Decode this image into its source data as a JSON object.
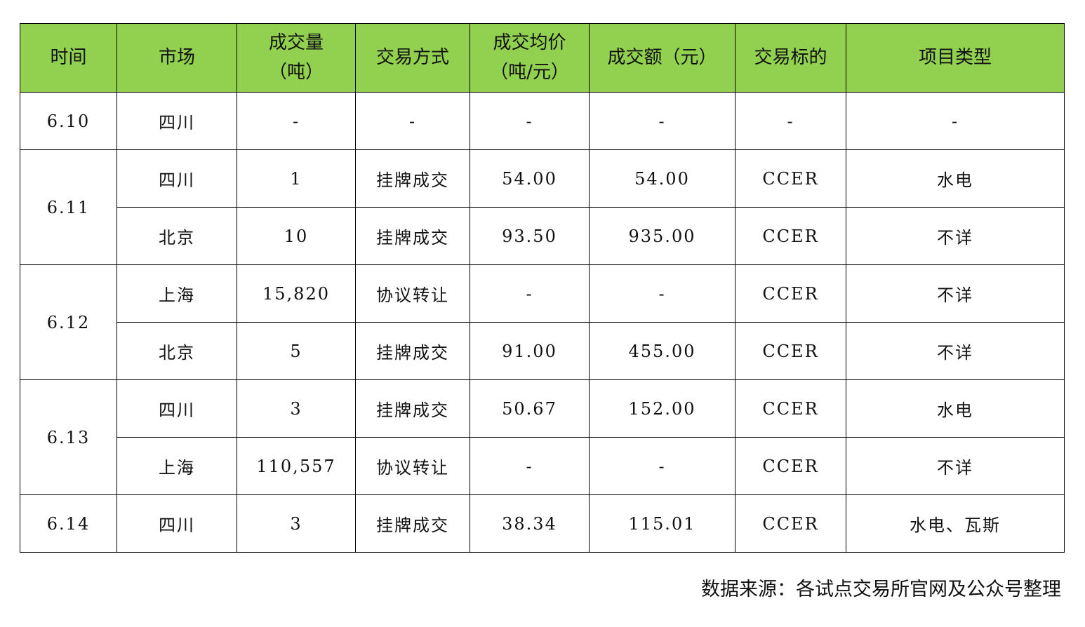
{
  "headers": [
    "时间",
    "市场",
    "成交量\n（吨）",
    "交易方式",
    "成交均价\n（吨/元）",
    "成交额（元）",
    "交易标的",
    "项目类型"
  ],
  "groups": [
    {
      "date": "6.10",
      "rows": [
        [
          "四川",
          "-",
          "-",
          "-",
          "-",
          "-",
          "-"
        ]
      ]
    },
    {
      "date": "6.11",
      "rows": [
        [
          "四川",
          "1",
          "挂牌成交",
          "54.00",
          "54.00",
          "CCER",
          "水电"
        ],
        [
          "北京",
          "10",
          "挂牌成交",
          "93.50",
          "935.00",
          "CCER",
          "不详"
        ]
      ]
    },
    {
      "date": "6.12",
      "rows": [
        [
          "上海",
          "15,820",
          "协议转让",
          "-",
          "-",
          "CCER",
          "不详"
        ],
        [
          "北京",
          "5",
          "挂牌成交",
          "91.00",
          "455.00",
          "CCER",
          "不详"
        ]
      ]
    },
    {
      "date": "6.13",
      "rows": [
        [
          "四川",
          "3",
          "挂牌成交",
          "50.67",
          "152.00",
          "CCER",
          "水电"
        ],
        [
          "上海",
          "110,557",
          "协议转让",
          "-",
          "-",
          "CCER",
          "不详"
        ]
      ]
    },
    {
      "date": "6.14",
      "rows": [
        [
          "四川",
          "3",
          "挂牌成交",
          "38.34",
          "115.01",
          "CCER",
          "水电、瓦斯"
        ]
      ]
    }
  ],
  "source": "数据来源：各试点交易所官网及公众号整理",
  "colors": {
    "header_bg": "#92d050"
  }
}
